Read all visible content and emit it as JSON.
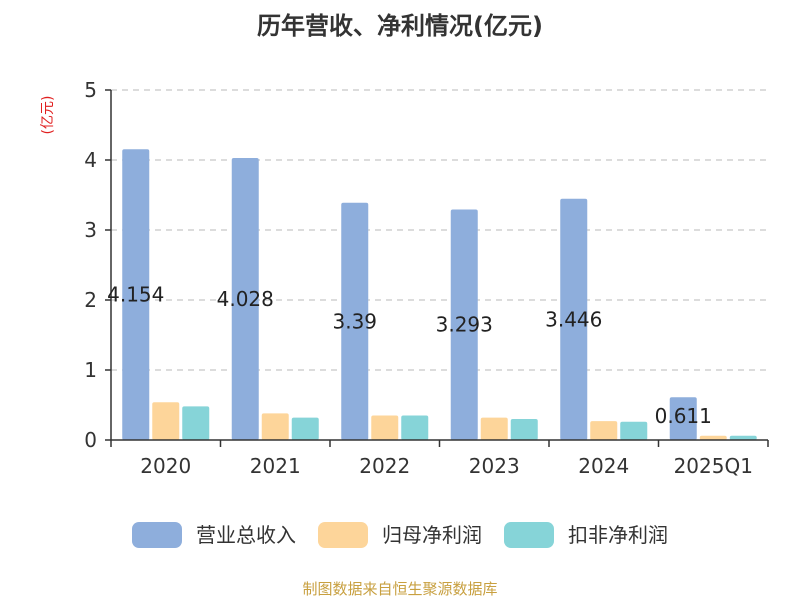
{
  "chart_data": {
    "type": "bar",
    "title": "历年营收、净利情况(亿元)",
    "unit": "(亿元)",
    "categories": [
      "2020",
      "2021",
      "2022",
      "2023",
      "2024",
      "2025Q1"
    ],
    "ylim": [
      0,
      5
    ],
    "yticks": [
      "0",
      "1",
      "2",
      "3",
      "4",
      "5"
    ],
    "grid": true,
    "legend_position": "bottom",
    "series": [
      {
        "name": "营业总收入",
        "color": "#8eaedc",
        "values": [
          4.154,
          4.028,
          3.39,
          3.293,
          3.446,
          0.611
        ],
        "labels": [
          "4.154",
          "4.028",
          "3.39",
          "3.293",
          "3.446",
          "0.611"
        ]
      },
      {
        "name": "归母净利润",
        "color": "#fdd59a",
        "values": [
          0.54,
          0.38,
          0.35,
          0.32,
          0.27,
          0.06
        ]
      },
      {
        "name": "扣非净利润",
        "color": "#86d4d8",
        "values": [
          0.48,
          0.32,
          0.35,
          0.3,
          0.26,
          0.06
        ]
      }
    ],
    "source": "制图数据来自恒生聚源数据库"
  }
}
